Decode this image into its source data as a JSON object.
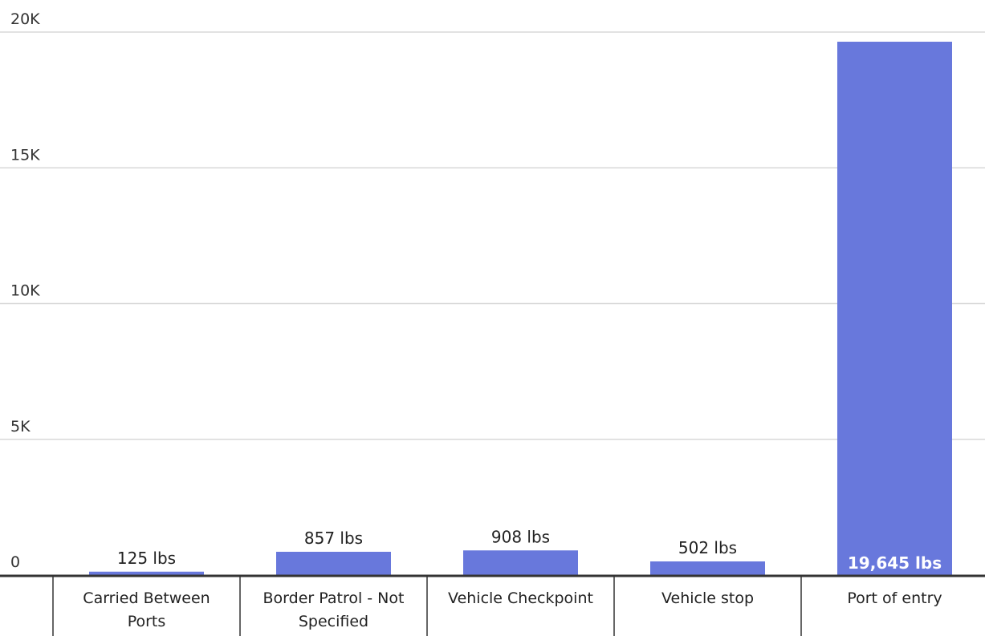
{
  "chart_data": {
    "type": "bar",
    "categories": [
      "Carried Between Ports",
      "Border Patrol - Not Specified",
      "Vehicle Checkpoint",
      "Vehicle stop",
      "Port of entry"
    ],
    "category_lines": [
      [
        "Carried Between",
        "Ports"
      ],
      [
        "Border Patrol - Not",
        "Specified"
      ],
      [
        "Vehicle Checkpoint"
      ],
      [
        "Vehicle stop"
      ],
      [
        "Port of entry"
      ]
    ],
    "values": [
      125,
      857,
      908,
      502,
      19645
    ],
    "value_labels": [
      "125 lbs",
      "857 lbs",
      "908 lbs",
      "502 lbs",
      "19,645 lbs"
    ],
    "ylim": [
      0,
      20000
    ],
    "yticks": [
      0,
      5000,
      10000,
      15000,
      20000
    ],
    "ytick_labels": [
      "0",
      "5K",
      "10K",
      "15K",
      "20K"
    ],
    "grid": true,
    "bar_color": "#6878dc"
  }
}
